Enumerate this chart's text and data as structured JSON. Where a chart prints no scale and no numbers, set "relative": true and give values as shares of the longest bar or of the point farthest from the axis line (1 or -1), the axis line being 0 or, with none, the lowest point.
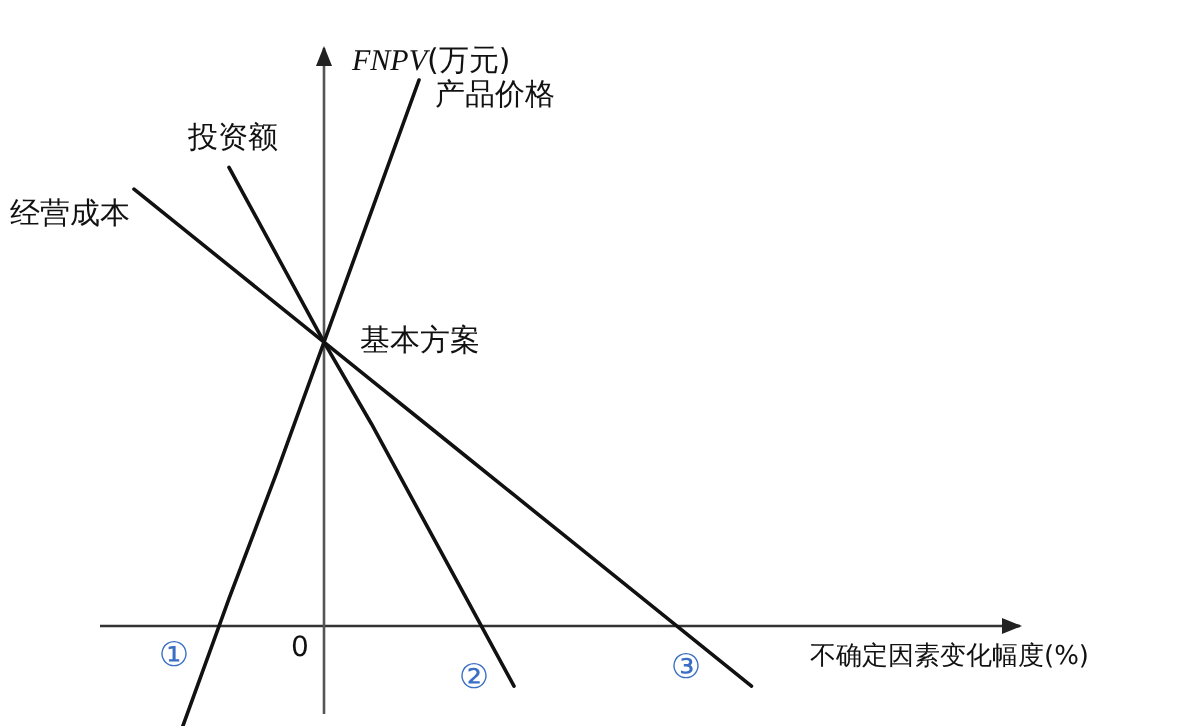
{
  "chart_data": {
    "type": "line",
    "relative": true,
    "xlabel": "不确定因素变化幅度(%)",
    "ylabel": "FNPV(万元)",
    "categories": [
      null,
      null,
      null,
      null,
      null,
      null,
      null,
      null,
      null,
      null,
      null,
      null,
      null,
      null
    ],
    "series": [
      {
        "name": "经营成本",
        "color": "#111111",
        "values": [
          0.8,
          0.73,
          0.66,
          0.59,
          0.52,
          0.45,
          0.38,
          0.31,
          0.24,
          0.17,
          0.1,
          0.03,
          -0.04,
          -0.11
        ]
      },
      {
        "name": "投资额",
        "color": "#111111",
        "values": [
          null,
          null,
          0.84,
          0.68,
          0.52,
          0.37,
          0.21,
          0.05,
          -0.11,
          null,
          null,
          null,
          null,
          null
        ]
      },
      {
        "name": "产品价格",
        "color": "#111111",
        "values": [
          null,
          -0.19,
          0.05,
          0.28,
          0.52,
          0.76,
          1,
          null,
          null,
          null,
          null,
          null,
          null,
          null
        ]
      }
    ],
    "annotations": [
      "基本方案",
      "0",
      "①",
      "②",
      "③"
    ],
    "marker": "none",
    "line_style": "solid",
    "grid": false,
    "legend": false
  }
}
